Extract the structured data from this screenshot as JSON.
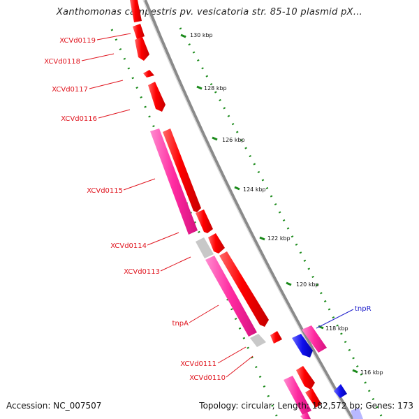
{
  "header": {
    "title": "Xanthomonas campestris pv. vesicatoria str. 85-10 plasmid pX..."
  },
  "footer": {
    "accession": "Accession: NC_007507",
    "summary": "Topology: circular; Length: 182,572 bp; Genes: 173"
  },
  "colors": {
    "cds_red": "#ff0000",
    "gene_pink": "#ff2aa0",
    "pseudo_grey": "#c8c8c8",
    "blue_strand": "#1010ee",
    "backbone": "#8a8a8a",
    "tick_green": "#1a8a1a",
    "label_red": "#e0141e",
    "label_blue": "#2222cc"
  },
  "scale_labels": [
    {
      "key": "130",
      "text": "130 kbp"
    },
    {
      "key": "128",
      "text": "128 kbp"
    },
    {
      "key": "126",
      "text": "126 kbp"
    },
    {
      "key": "124",
      "text": "124 kbp"
    },
    {
      "key": "122",
      "text": "122 kbp"
    },
    {
      "key": "120",
      "text": "120 kbp"
    },
    {
      "key": "118",
      "text": "118 kbp"
    },
    {
      "key": "116",
      "text": "116 kbp"
    }
  ],
  "gene_labels": [
    {
      "key": "xcvd0119",
      "text": "XCVd0119"
    },
    {
      "key": "xcvd0118",
      "text": "XCVd0118"
    },
    {
      "key": "xcvd0117",
      "text": "XCVd0117"
    },
    {
      "key": "xcvd0116",
      "text": "XCVd0116"
    },
    {
      "key": "xcvd0115",
      "text": "XCVd0115"
    },
    {
      "key": "xcvd0114",
      "text": "XCVd0114"
    },
    {
      "key": "xcvd0113",
      "text": "XCVd0113"
    },
    {
      "key": "tnpa",
      "text": "tnpA"
    },
    {
      "key": "xcvd0111",
      "text": "XCVd0111"
    },
    {
      "key": "xcvd0110",
      "text": "XCVd0110"
    },
    {
      "key": "tnpr",
      "text": "tnpR"
    }
  ]
}
